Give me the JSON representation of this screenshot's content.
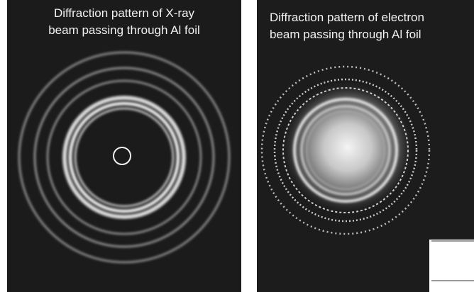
{
  "panels": [
    {
      "caption": [
        "Diffraction pattern of X-ray",
        "beam passing through Al foil"
      ]
    },
    {
      "caption": [
        "Diffraction pattern of electron",
        "beam passing through Al foil"
      ]
    }
  ]
}
